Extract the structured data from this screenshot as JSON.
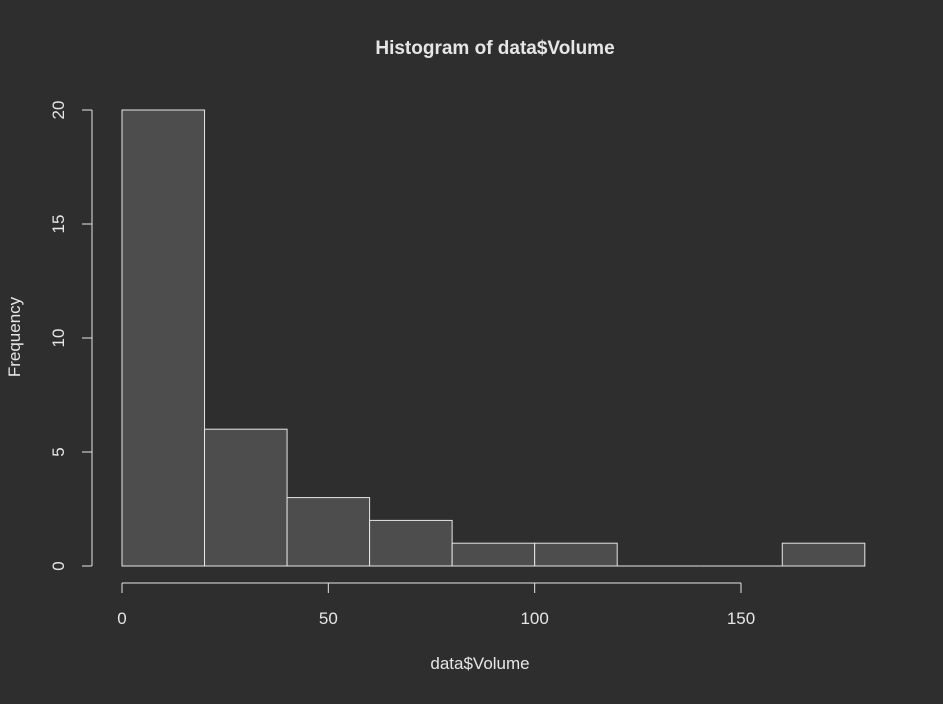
{
  "chart_data": {
    "type": "bar",
    "title": "Histogram of data$Volume",
    "xlabel": "data$Volume",
    "ylabel": "Frequency",
    "bins": [
      {
        "from": 0,
        "to": 20,
        "count": 20
      },
      {
        "from": 20,
        "to": 40,
        "count": 6
      },
      {
        "from": 40,
        "to": 60,
        "count": 3
      },
      {
        "from": 60,
        "to": 80,
        "count": 2
      },
      {
        "from": 80,
        "to": 100,
        "count": 1
      },
      {
        "from": 100,
        "to": 120,
        "count": 1
      },
      {
        "from": 120,
        "to": 140,
        "count": 0
      },
      {
        "from": 140,
        "to": 160,
        "count": 0
      },
      {
        "from": 160,
        "to": 180,
        "count": 1
      }
    ],
    "x_ticks": [
      0,
      50,
      100,
      150
    ],
    "y_ticks": [
      0,
      5,
      10,
      15,
      20
    ],
    "xlim": [
      0,
      150
    ],
    "ylim": [
      0,
      20
    ],
    "grid": false,
    "legend": "none",
    "colors": {
      "background": "#2e2e2e",
      "bar_fill": "#4d4d4d",
      "bar_stroke": "#e6e6e6",
      "axis": "#e6e6e6",
      "text": "#e6e6e6"
    }
  }
}
